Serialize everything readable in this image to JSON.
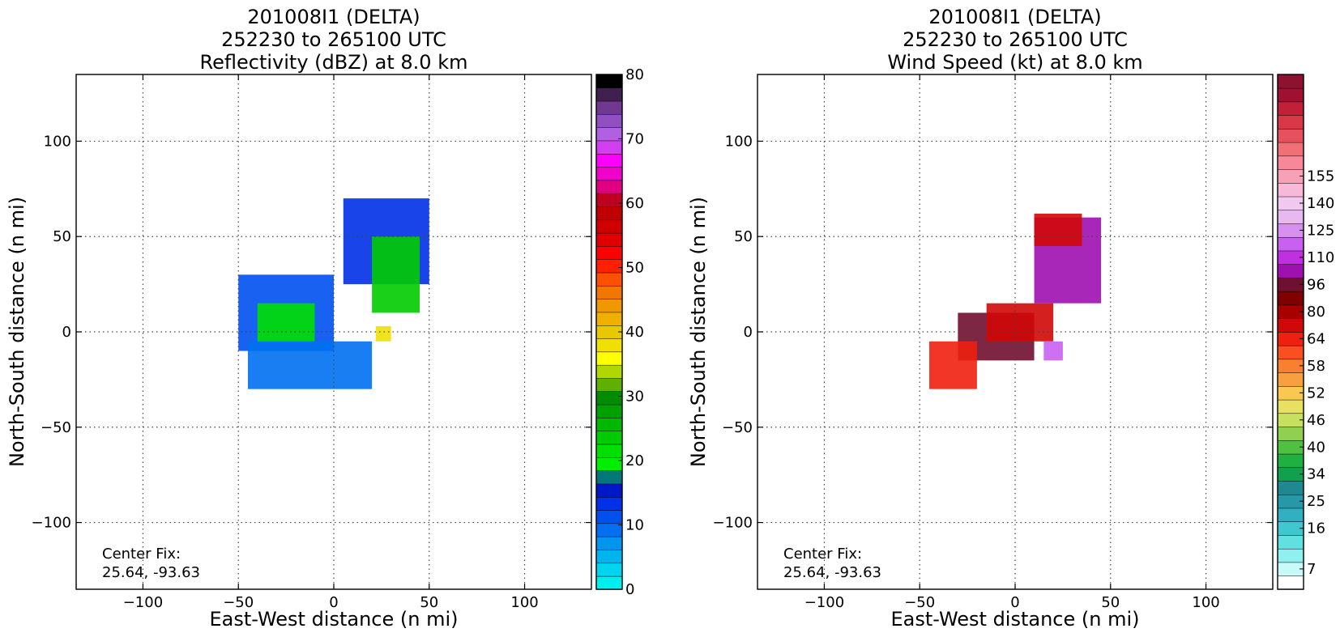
{
  "chart_data": [
    {
      "type": "heatmap",
      "title_lines": [
        "201008I1 (DELTA)",
        "252230 to 265100 UTC",
        "Reflectivity (dBZ) at 8.0 km"
      ],
      "xlabel": "East-West distance (n mi)",
      "ylabel": "North-South distance (n mi)",
      "xlim": [
        -135,
        135
      ],
      "ylim": [
        -135,
        135
      ],
      "xticks": [
        -100,
        -50,
        0,
        50,
        100
      ],
      "yticks": [
        -100,
        -50,
        0,
        50,
        100
      ],
      "xtick_labels": [
        "−100",
        "−50",
        "0",
        "50",
        "100"
      ],
      "ytick_labels": [
        "−100",
        "−50",
        "0",
        "50",
        "100"
      ],
      "grid": true,
      "annotation": [
        "Center Fix:",
        "25.64, -93.63"
      ],
      "colorbar": {
        "vmin": 0,
        "vmax": 80,
        "tick_values": [
          0,
          10,
          20,
          30,
          40,
          50,
          60,
          70,
          80
        ],
        "tick_labels": [
          "0",
          "10",
          "20",
          "30",
          "40",
          "50",
          "60",
          "70",
          "80"
        ],
        "colors": [
          "#00eeee",
          "#00d4ee",
          "#00b4ee",
          "#0096f0",
          "#0070f0",
          "#0050f0",
          "#0030e8",
          "#0018c8",
          "#007878",
          "#00ee00",
          "#00e000",
          "#00cc00",
          "#00b800",
          "#00a000",
          "#008c00",
          "#60b000",
          "#b0d800",
          "#ffff00",
          "#f0e000",
          "#e8c800",
          "#f0b000",
          "#f09800",
          "#f07800",
          "#ff5000",
          "#ff2000",
          "#ff0000",
          "#e00000",
          "#d00000",
          "#c00000",
          "#c00020",
          "#e00080",
          "#f000c8",
          "#ff00ff",
          "#d040f0",
          "#b060e0",
          "#9050c0",
          "#703890",
          "#402050",
          "#000000"
        ]
      },
      "fields": [
        {
          "x0": -50,
          "y0": -10,
          "x1": 0,
          "y1": 30,
          "value": 12
        },
        {
          "x0": 5,
          "y0": 25,
          "x1": 50,
          "y1": 70,
          "value": 14
        },
        {
          "x0": -45,
          "y0": -30,
          "x1": 20,
          "y1": -5,
          "value": 9
        },
        {
          "x0": -40,
          "y0": -5,
          "x1": -10,
          "y1": 15,
          "value": 22
        },
        {
          "x0": 20,
          "y0": 10,
          "x1": 45,
          "y1": 50,
          "value": 24
        },
        {
          "x0": 22,
          "y0": -5,
          "x1": 30,
          "y1": 3,
          "value": 38
        }
      ]
    },
    {
      "type": "heatmap",
      "title_lines": [
        "201008I1 (DELTA)",
        "252230 to 265100 UTC",
        "Wind Speed (kt) at 8.0 km"
      ],
      "xlabel": "East-West distance (n mi)",
      "ylabel": "North-South distance (n mi)",
      "xlim": [
        -135,
        135
      ],
      "ylim": [
        -135,
        135
      ],
      "xticks": [
        -100,
        -50,
        0,
        50,
        100
      ],
      "yticks": [
        -100,
        -50,
        0,
        50,
        100
      ],
      "xtick_labels": [
        "−100",
        "−50",
        "0",
        "50",
        "100"
      ],
      "ytick_labels": [
        "−100",
        "−50",
        "0",
        "50",
        "100"
      ],
      "grid": true,
      "annotation": [
        "Center Fix:",
        "25.64, -93.63"
      ],
      "colorbar": {
        "vmin": 0,
        "vmax": 40,
        "tick_values": [
          2,
          6,
          8,
          10,
          12,
          14,
          16,
          18,
          20,
          22,
          24,
          26,
          28,
          30,
          32,
          35,
          38
        ],
        "tick_labels": [
          "7",
          "16",
          "25",
          "34",
          "40",
          "46",
          "52",
          "58",
          "64",
          "80",
          "96",
          "110",
          "125",
          "140",
          "155"
        ],
        "label_positions": [
          1,
          4,
          6,
          8,
          10,
          12,
          14,
          16,
          18,
          20,
          22,
          24,
          26,
          28,
          30
        ],
        "colors": [
          "#ffffff",
          "#c8fafa",
          "#90f0f0",
          "#60e0e0",
          "#40c8d0",
          "#30b0c0",
          "#2898a8",
          "#208890",
          "#10a050",
          "#20b040",
          "#50c040",
          "#90d050",
          "#c8e060",
          "#e8e060",
          "#f8c850",
          "#f8a040",
          "#f88030",
          "#f85020",
          "#f02010",
          "#d00808",
          "#a80000",
          "#800000",
          "#701030",
          "#a010b0",
          "#c030e0",
          "#c860f0",
          "#d890f0",
          "#e8b8f0",
          "#f0c8f0",
          "#f8b8d8",
          "#f8a0b8",
          "#f88898",
          "#f07078",
          "#e85060",
          "#d83848",
          "#c02038",
          "#a01030",
          "#901030"
        ]
      },
      "fields": [
        {
          "x0": 10,
          "y0": 15,
          "x1": 45,
          "y1": 60,
          "value": 25
        },
        {
          "x0": -30,
          "y0": -15,
          "x1": 10,
          "y1": 10,
          "value": 24
        },
        {
          "x0": 10,
          "y0": 45,
          "x1": 35,
          "y1": 62,
          "value": 21
        },
        {
          "x0": -45,
          "y0": -30,
          "x1": -20,
          "y1": -5,
          "value": 19
        },
        {
          "x0": -15,
          "y0": -5,
          "x1": 20,
          "y1": 15,
          "value": 20
        },
        {
          "x0": 15,
          "y0": -15,
          "x1": 25,
          "y1": -5,
          "value": 27
        }
      ]
    }
  ]
}
